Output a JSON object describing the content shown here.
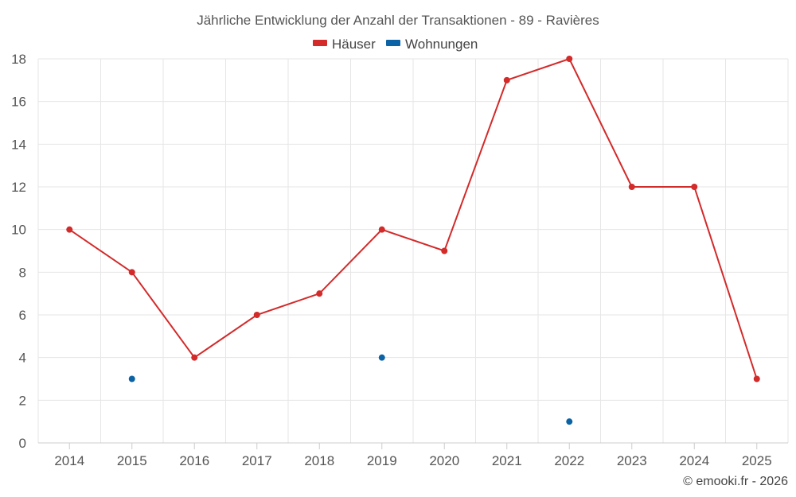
{
  "chart_data": {
    "type": "line",
    "title": "Jährliche Entwicklung der Anzahl der Transaktionen - 89 - Ravières",
    "categories": [
      "2014",
      "2015",
      "2016",
      "2017",
      "2018",
      "2019",
      "2020",
      "2021",
      "2022",
      "2023",
      "2024",
      "2025"
    ],
    "series": [
      {
        "name": "Häuser",
        "color": "#d32a2a",
        "values": [
          10,
          8,
          4,
          6,
          7,
          10,
          9,
          17,
          18,
          12,
          12,
          3
        ],
        "style": "line"
      },
      {
        "name": "Wohnungen",
        "color": "#0b63a5",
        "values": [
          null,
          3,
          null,
          null,
          null,
          4,
          null,
          null,
          1,
          null,
          null,
          null
        ],
        "style": "points"
      }
    ],
    "ylim": [
      0,
      18
    ],
    "yticks": [
      0,
      2,
      4,
      6,
      8,
      10,
      12,
      14,
      16,
      18
    ],
    "grid": true,
    "legend": "top-center",
    "credit": "© emooki.fr - 2026"
  }
}
